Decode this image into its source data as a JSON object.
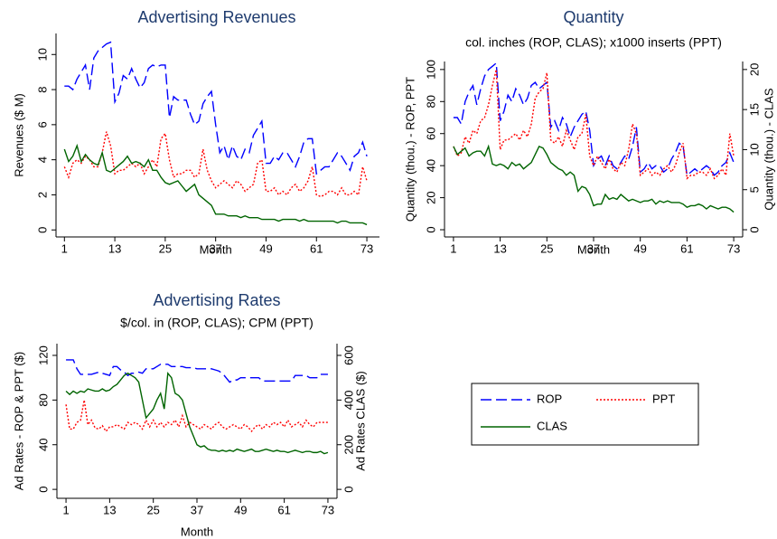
{
  "chart_data": [
    {
      "type": "line",
      "title": "Advertising Revenues",
      "xlabel": "Month",
      "ylabel": "Revenues ($ M)",
      "x": [
        1,
        2,
        3,
        4,
        5,
        6,
        7,
        8,
        9,
        10,
        11,
        12,
        13,
        14,
        15,
        16,
        17,
        18,
        19,
        20,
        21,
        22,
        23,
        24,
        25,
        26,
        27,
        28,
        29,
        30,
        31,
        32,
        33,
        34,
        35,
        36,
        37,
        38,
        39,
        40,
        41,
        42,
        43,
        44,
        45,
        46,
        47,
        48,
        49,
        50,
        51,
        52,
        53,
        54,
        55,
        56,
        57,
        58,
        59,
        60,
        61,
        62,
        63,
        64,
        65,
        66,
        67,
        68,
        69,
        70,
        71,
        72,
        73
      ],
      "xlim": [
        -1,
        76
      ],
      "xticks": [
        1,
        13,
        25,
        37,
        49,
        61,
        73
      ],
      "ylim": [
        -0.4,
        11.2
      ],
      "yticks": [
        0,
        2,
        4,
        6,
        8,
        10
      ],
      "series": [
        {
          "color": "#0000ff",
          "line_style": "dashed",
          "values": [
            8.2,
            8.2,
            8.0,
            8.6,
            9.0,
            9.4,
            8.0,
            9.8,
            10.2,
            10.4,
            10.6,
            10.7,
            7.3,
            7.8,
            8.8,
            8.6,
            9.2,
            8.6,
            8.1,
            8.4,
            9.2,
            9.4,
            9.3,
            9.4,
            9.4,
            6.4,
            7.6,
            7.4,
            7.4,
            7.4,
            6.6,
            6.0,
            6.2,
            7.2,
            7.6,
            7.9,
            6.0,
            4.4,
            4.8,
            4.0,
            4.8,
            4.2,
            4.0,
            4.6,
            4.4,
            5.4,
            5.8,
            6.2,
            3.8,
            3.8,
            4.2,
            4.0,
            4.4,
            4.4,
            4.0,
            3.6,
            4.2,
            5.0,
            5.2,
            5.2,
            3.2,
            3.4,
            3.6,
            3.6,
            4.0,
            4.4,
            4.2,
            3.8,
            3.4,
            4.2,
            4.4,
            5.0,
            4.2
          ]
        },
        {
          "color": "#ff0000",
          "line_style": "dotted",
          "values": [
            3.6,
            3.0,
            3.8,
            4.0,
            3.8,
            4.2,
            4.0,
            3.6,
            3.6,
            4.4,
            5.6,
            4.8,
            3.2,
            3.4,
            3.4,
            3.6,
            3.8,
            3.6,
            3.8,
            3.2,
            3.6,
            4.0,
            3.6,
            5.2,
            5.5,
            4.0,
            3.0,
            3.2,
            3.2,
            3.4,
            3.4,
            3.0,
            3.2,
            4.6,
            3.4,
            2.8,
            2.4,
            2.6,
            2.8,
            2.6,
            2.4,
            2.8,
            2.6,
            2.2,
            2.4,
            2.6,
            3.8,
            4.0,
            2.2,
            2.2,
            2.4,
            2.0,
            2.2,
            2.0,
            2.4,
            2.6,
            2.2,
            2.4,
            2.8,
            3.6,
            2.0,
            1.9,
            2.0,
            2.2,
            2.2,
            2.0,
            2.4,
            2.0,
            2.0,
            2.2,
            2.0,
            3.6,
            2.8
          ]
        },
        {
          "color": "#006400",
          "line_style": "solid",
          "values": [
            4.6,
            3.9,
            4.2,
            4.8,
            3.9,
            4.3,
            4.0,
            3.8,
            3.7,
            4.4,
            3.4,
            3.3,
            3.5,
            3.7,
            3.9,
            4.2,
            3.8,
            3.9,
            3.8,
            3.6,
            4.0,
            3.4,
            3.4,
            3.0,
            2.7,
            2.6,
            2.7,
            2.8,
            2.5,
            2.2,
            2.4,
            2.6,
            2.0,
            1.8,
            1.6,
            1.4,
            0.9,
            0.9,
            0.9,
            0.8,
            0.8,
            0.8,
            0.7,
            0.8,
            0.7,
            0.7,
            0.7,
            0.6,
            0.6,
            0.6,
            0.6,
            0.5,
            0.6,
            0.6,
            0.6,
            0.6,
            0.5,
            0.6,
            0.5,
            0.5,
            0.5,
            0.5,
            0.5,
            0.5,
            0.5,
            0.4,
            0.5,
            0.5,
            0.4,
            0.4,
            0.4,
            0.4,
            0.3
          ]
        }
      ]
    },
    {
      "type": "line",
      "title": "Quantity",
      "subtitle": "col. inches (ROP, CLAS); x1000 inserts (PPT)",
      "xlabel": "Month",
      "ylabel": "Quantity (thou.) - ROP, PPT",
      "y2label": "Quantity (thou.) - CLAS",
      "x": [
        1,
        2,
        3,
        4,
        5,
        6,
        7,
        8,
        9,
        10,
        11,
        12,
        13,
        14,
        15,
        16,
        17,
        18,
        19,
        20,
        21,
        22,
        23,
        24,
        25,
        26,
        27,
        28,
        29,
        30,
        31,
        32,
        33,
        34,
        35,
        36,
        37,
        38,
        39,
        40,
        41,
        42,
        43,
        44,
        45,
        46,
        47,
        48,
        49,
        50,
        51,
        52,
        53,
        54,
        55,
        56,
        57,
        58,
        59,
        60,
        61,
        62,
        63,
        64,
        65,
        66,
        67,
        68,
        69,
        70,
        71,
        72,
        73
      ],
      "xlim": [
        -1.3,
        75.3
      ],
      "xticks": [
        1,
        13,
        25,
        37,
        49,
        61,
        73
      ],
      "ylim": [
        -4.5,
        105
      ],
      "yticks": [
        0,
        20,
        40,
        60,
        80,
        100
      ],
      "y2lim": [
        -0.9,
        21
      ],
      "y2ticks": [
        0,
        5,
        10,
        15,
        20
      ],
      "series": [
        {
          "color": "#0000ff",
          "line_style": "dashed",
          "values": [
            70,
            70,
            66,
            80,
            86,
            90,
            78,
            88,
            96,
            100,
            102,
            104,
            68,
            74,
            84,
            80,
            88,
            84,
            78,
            82,
            90,
            92,
            88,
            90,
            92,
            64,
            68,
            62,
            70,
            66,
            58,
            64,
            68,
            72,
            74,
            62,
            40,
            44,
            46,
            40,
            46,
            40,
            38,
            42,
            46,
            44,
            52,
            64,
            36,
            38,
            42,
            38,
            40,
            40,
            36,
            38,
            44,
            48,
            54,
            52,
            34,
            36,
            38,
            36,
            38,
            40,
            38,
            34,
            36,
            40,
            42,
            48,
            42
          ]
        },
        {
          "color": "#ff0000",
          "line_style": "dotted",
          "values": [
            52,
            46,
            48,
            58,
            54,
            62,
            60,
            68,
            70,
            78,
            90,
            100,
            50,
            56,
            56,
            58,
            60,
            56,
            62,
            58,
            66,
            82,
            86,
            88,
            98,
            56,
            54,
            58,
            52,
            62,
            56,
            50,
            58,
            60,
            72,
            46,
            40,
            46,
            42,
            38,
            44,
            38,
            36,
            42,
            40,
            50,
            66,
            60,
            34,
            36,
            38,
            34,
            36,
            34,
            38,
            40,
            36,
            40,
            48,
            54,
            32,
            34,
            34,
            36,
            36,
            34,
            38,
            32,
            34,
            38,
            34,
            60,
            46
          ]
        },
        {
          "color": "#006400",
          "line_style": "solid",
          "axis": "y2",
          "values": [
            10.4,
            9.4,
            9.8,
            10.2,
            9.2,
            9.6,
            9.8,
            9.8,
            9.2,
            10.4,
            8.2,
            8.0,
            8.2,
            8.0,
            7.6,
            8.4,
            8.0,
            8.2,
            7.6,
            8.0,
            8.4,
            9.4,
            10.4,
            10.2,
            9.4,
            8.4,
            8.0,
            7.6,
            7.4,
            6.8,
            7.2,
            6.8,
            4.8,
            5.4,
            5.2,
            4.4,
            3.0,
            3.2,
            3.2,
            4.4,
            3.8,
            4.0,
            3.8,
            4.4,
            4.0,
            3.6,
            3.8,
            3.6,
            3.4,
            3.6,
            3.6,
            3.8,
            3.2,
            3.6,
            3.4,
            3.6,
            3.4,
            3.4,
            3.4,
            3.2,
            2.8,
            3.0,
            3.0,
            3.2,
            3.0,
            2.6,
            3.0,
            2.8,
            2.6,
            2.8,
            2.8,
            2.6,
            2.2
          ]
        }
      ]
    },
    {
      "type": "line",
      "title": "Advertising Rates",
      "subtitle": "$/col. in (ROP, CLAS); CPM (PPT)",
      "xlabel": "Month",
      "ylabel": "Ad Rates - ROP & PPT ($)",
      "y2label": "Ad Rates CLAS ($)",
      "x": [
        1,
        2,
        3,
        4,
        5,
        6,
        7,
        8,
        9,
        10,
        11,
        12,
        13,
        14,
        15,
        16,
        17,
        18,
        19,
        20,
        21,
        22,
        23,
        24,
        25,
        26,
        27,
        28,
        29,
        30,
        31,
        32,
        33,
        34,
        35,
        36,
        37,
        38,
        39,
        40,
        41,
        42,
        43,
        44,
        45,
        46,
        47,
        48,
        49,
        50,
        51,
        52,
        53,
        54,
        55,
        56,
        57,
        58,
        59,
        60,
        61,
        62,
        63,
        64,
        65,
        66,
        67,
        68,
        69,
        70,
        71,
        72,
        73
      ],
      "xlim": [
        -1.5,
        75.5
      ],
      "xticks": [
        1,
        13,
        25,
        37,
        49,
        61,
        73
      ],
      "ylim": [
        -8,
        130.5
      ],
      "yticks": [
        0,
        40,
        80,
        120
      ],
      "y2lim": [
        -40,
        652.5
      ],
      "y2ticks": [
        0,
        200,
        400,
        600
      ],
      "series": [
        {
          "name": "ROP",
          "color": "#0000ff",
          "line_style": "dashed",
          "values": [
            116,
            116,
            116,
            108,
            103,
            103,
            103,
            103,
            104,
            105,
            104,
            103,
            102,
            110,
            110,
            107,
            105,
            102,
            104,
            104,
            105,
            104,
            108,
            108,
            108,
            110,
            112,
            112,
            112,
            110,
            110,
            110,
            110,
            109,
            109,
            109,
            108,
            108,
            108,
            108,
            108,
            107,
            106,
            104,
            100,
            96,
            98,
            98,
            100,
            100,
            100,
            100,
            100,
            100,
            97,
            97,
            97,
            97,
            97,
            97,
            97,
            97,
            97,
            102,
            102,
            102,
            102,
            100,
            100,
            100,
            103,
            103,
            103
          ]
        },
        {
          "name": "PPT",
          "color": "#ff0000",
          "line_style": "dotted",
          "values": [
            76,
            54,
            54,
            60,
            62,
            80,
            58,
            62,
            55,
            54,
            57,
            52,
            56,
            56,
            58,
            56,
            54,
            60,
            58,
            60,
            58,
            54,
            62,
            56,
            62,
            56,
            60,
            56,
            60,
            58,
            62,
            56,
            66,
            56,
            60,
            58,
            56,
            54,
            58,
            56,
            54,
            58,
            60,
            56,
            54,
            56,
            58,
            56,
            54,
            58,
            56,
            52,
            56,
            58,
            54,
            58,
            56,
            60,
            58,
            60,
            56,
            62,
            56,
            58,
            60,
            56,
            62,
            58,
            56,
            60,
            60,
            60,
            60
          ]
        },
        {
          "name": "CLAS",
          "color": "#006400",
          "line_style": "solid",
          "axis": "y2",
          "values": [
            440,
            425,
            440,
            430,
            440,
            435,
            450,
            445,
            440,
            440,
            450,
            440,
            445,
            460,
            470,
            490,
            510,
            520,
            510,
            500,
            480,
            400,
            320,
            340,
            360,
            400,
            430,
            360,
            520,
            500,
            430,
            420,
            400,
            340,
            280,
            240,
            200,
            190,
            195,
            180,
            175,
            175,
            170,
            175,
            170,
            175,
            170,
            180,
            175,
            170,
            175,
            180,
            170,
            170,
            175,
            180,
            175,
            170,
            175,
            170,
            170,
            165,
            170,
            175,
            170,
            165,
            170,
            170,
            165,
            165,
            170,
            160,
            165
          ]
        }
      ]
    }
  ]
}
